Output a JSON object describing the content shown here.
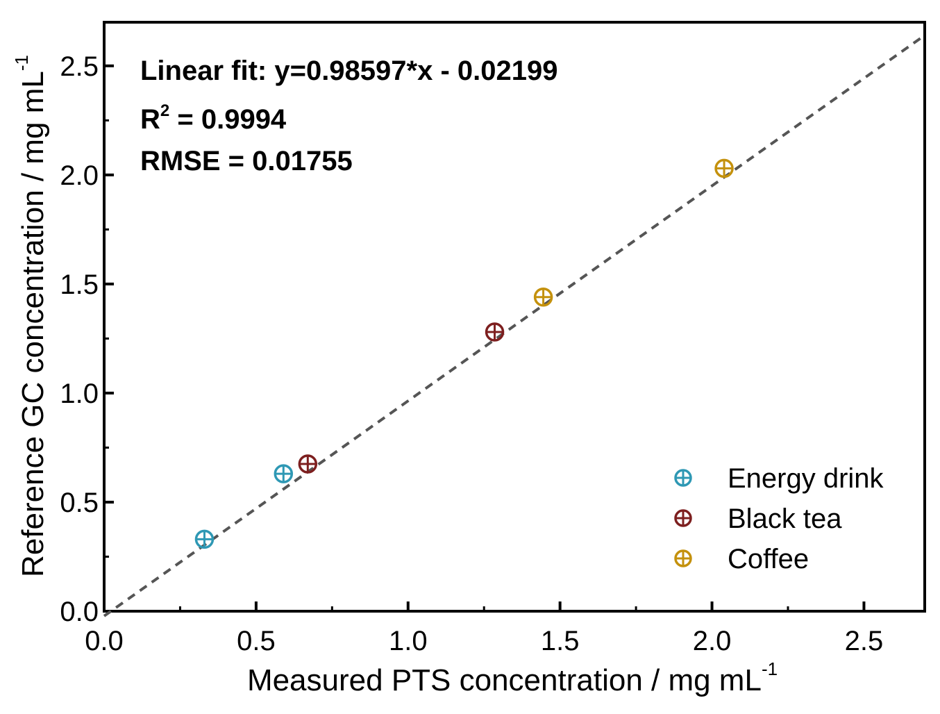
{
  "chart_data": {
    "type": "scatter",
    "xlabel": "Measured PTS concentration / mg mL",
    "xlabel_sup": "-1",
    "ylabel": "Reference GC concentration / mg mL",
    "ylabel_sup": "-1",
    "xlim": [
      0,
      2.7
    ],
    "ylim": [
      0,
      2.7
    ],
    "xticks": [
      "0.0",
      "0.5",
      "1.0",
      "1.5",
      "2.0",
      "2.5"
    ],
    "yticks": [
      "0.0",
      "0.5",
      "1.0",
      "1.5",
      "2.0",
      "2.5"
    ],
    "annotations": {
      "line1": "Linear fit: y=0.98597*x - 0.02199",
      "r2_prefix": "R",
      "r2_sup": "2",
      "r2_rest": " = 0.9994",
      "rmse": "RMSE = 0.01755"
    },
    "fit": {
      "slope": 0.98597,
      "intercept": -0.02199,
      "style": "dashed",
      "color": "#555555"
    },
    "legend_position": "bottom-right",
    "series": [
      {
        "name": "Energy drink",
        "color": "#2e98b4",
        "points": [
          [
            0.33,
            0.33
          ],
          [
            0.59,
            0.63
          ]
        ]
      },
      {
        "name": "Black tea",
        "color": "#7d1f1f",
        "points": [
          [
            0.67,
            0.675
          ],
          [
            1.285,
            1.28
          ]
        ]
      },
      {
        "name": "Coffee",
        "color": "#c4910d",
        "points": [
          [
            1.445,
            1.44
          ],
          [
            2.04,
            2.03
          ]
        ]
      }
    ]
  }
}
